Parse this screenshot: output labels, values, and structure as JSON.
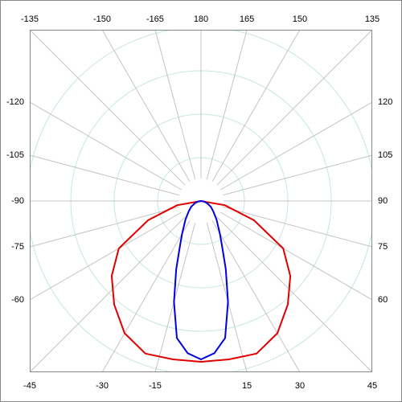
{
  "chart_data": {
    "type": "polar",
    "angle_ticks": [
      -165,
      -150,
      -135,
      -120,
      -105,
      -90,
      -75,
      -60,
      -45,
      -30,
      -15,
      15,
      30,
      45,
      60,
      75,
      90,
      105,
      120,
      135,
      150,
      165,
      180
    ],
    "rlim": [
      0,
      213
    ],
    "rticks": [
      54,
      108,
      162,
      216
    ],
    "series": [
      {
        "color": "#e00000",
        "angles": [
          -90,
          -80,
          -70,
          -60,
          -50,
          -40,
          -30,
          -20,
          -10,
          0,
          10,
          20,
          30,
          40,
          50,
          60,
          70,
          80,
          90
        ],
        "values": [
          0,
          30,
          70,
          118,
          145,
          168,
          190,
          202,
          200,
          200,
          200,
          202,
          190,
          168,
          145,
          118,
          70,
          30,
          0
        ]
      },
      {
        "color": "#0000e0",
        "angles": [
          -90,
          -80,
          -70,
          -60,
          -50,
          -40,
          -30,
          -25,
          -20,
          -15,
          -10,
          -5,
          0,
          5,
          10,
          15,
          20,
          25,
          30,
          40,
          50,
          60,
          70,
          80,
          90
        ],
        "values": [
          0,
          4,
          8,
          14,
          20,
          30,
          47,
          62,
          90,
          130,
          173,
          190,
          197,
          190,
          173,
          130,
          90,
          62,
          47,
          30,
          20,
          14,
          8,
          4,
          0
        ]
      }
    ]
  }
}
